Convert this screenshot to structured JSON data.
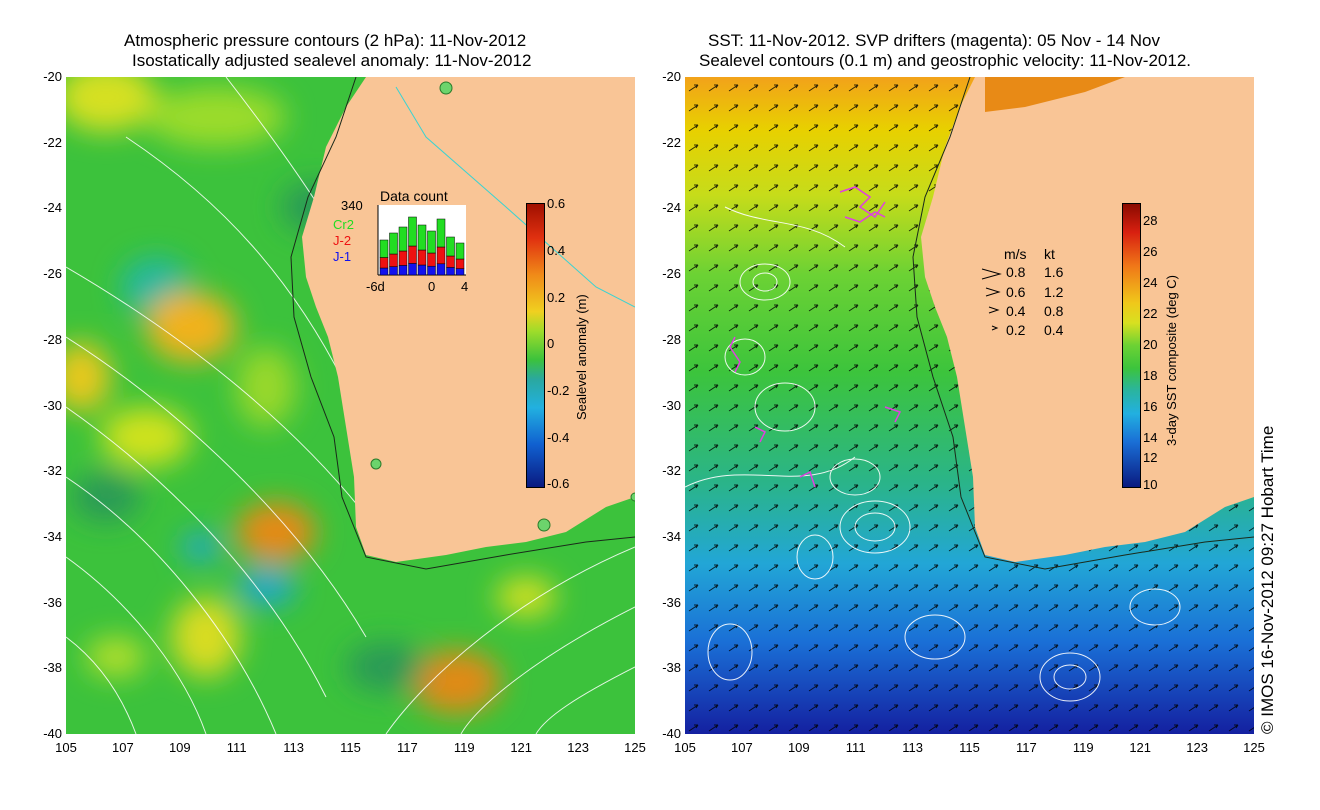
{
  "left": {
    "title_line1": "Atmospheric pressure contours (2 hPa): 11-Nov-2012",
    "title_line2": "Isostatically adjusted sealevel anomaly: 11-Nov-2012",
    "inset": {
      "title": "Data count",
      "max_count": "340",
      "missions": [
        {
          "label": "Cr2",
          "color": "#22dd22"
        },
        {
          "label": "J-2",
          "color": "#ee1111"
        },
        {
          "label": "J-1",
          "color": "#1111ee"
        }
      ],
      "x_ticks": [
        "-6d",
        "0",
        "4"
      ]
    },
    "colorbar": {
      "label": "Sealevel anomaly (m)",
      "ticks": [
        "0.6",
        "0.4",
        "0.2",
        "0",
        "-0.2",
        "-0.4",
        "-0.6"
      ]
    }
  },
  "right": {
    "title_line1": "SST: 11-Nov-2012. SVP drifters (magenta): 05 Nov - 14 Nov",
    "title_line2": "Sealevel contours (0.1 m) and geostrophic velocity: 11-Nov-2012.",
    "velocity_legend": {
      "header_ms": "m/s",
      "header_kt": "kt",
      "rows": [
        {
          "ms": "0.8",
          "kt": "1.6"
        },
        {
          "ms": "0.6",
          "kt": "1.2"
        },
        {
          "ms": "0.4",
          "kt": "0.8"
        },
        {
          "ms": "0.2",
          "kt": "0.4"
        }
      ]
    },
    "colorbar": {
      "label": "3-day SST composite (deg C)",
      "ticks": [
        "28",
        "26",
        "24",
        "22",
        "20",
        "18",
        "16",
        "14",
        "12",
        "10"
      ]
    }
  },
  "axes": {
    "y_ticks": [
      "-20",
      "-22",
      "-24",
      "-26",
      "-28",
      "-30",
      "-32",
      "-34",
      "-36",
      "-38",
      "-40"
    ],
    "x_ticks": [
      "105",
      "107",
      "109",
      "111",
      "113",
      "115",
      "117",
      "119",
      "121",
      "123",
      "125"
    ]
  },
  "credit": "© IMOS 16-Nov-2012 09:27 Hobart Time",
  "colors": {
    "land": "#f9c596",
    "ssa_neutral": "#3cc23c",
    "sst_warm": "#e8d000",
    "sst_cool": "#1a6fd6"
  }
}
